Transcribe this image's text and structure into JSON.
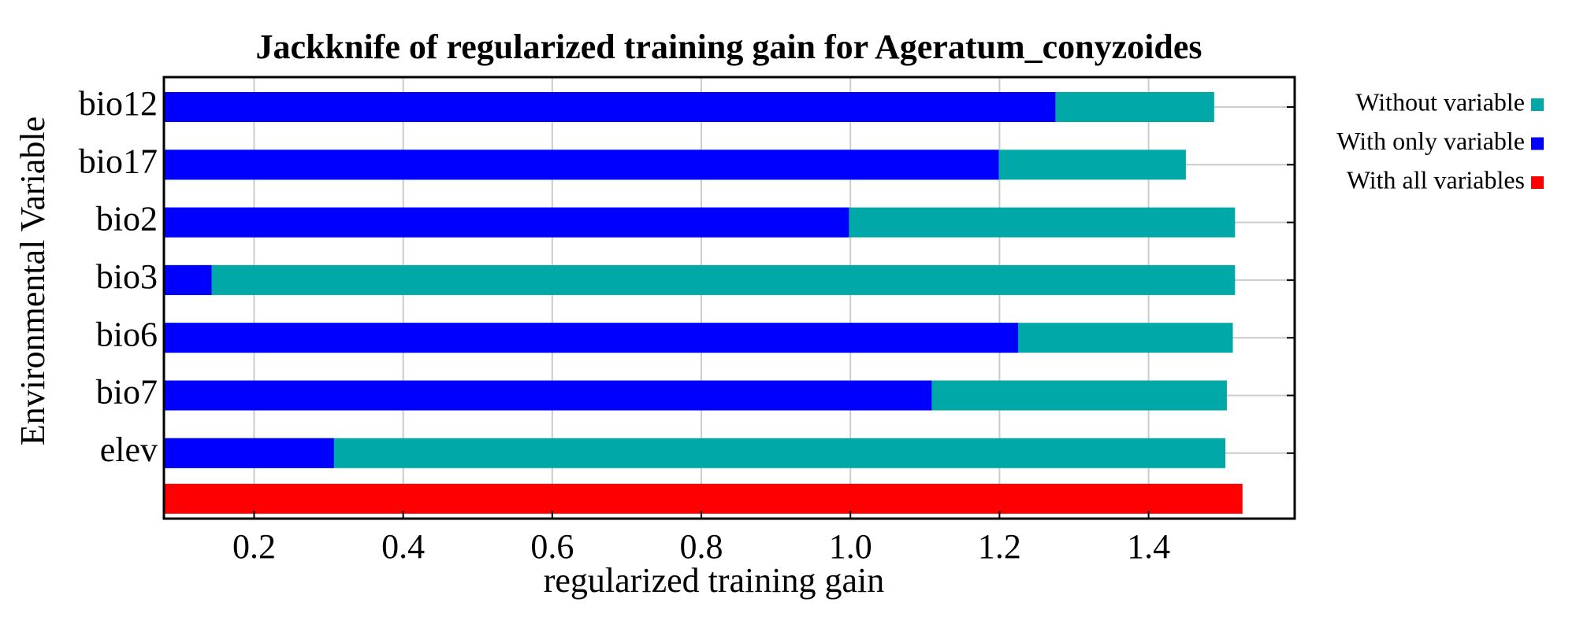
{
  "chart_data": {
    "type": "bar",
    "orientation": "horizontal",
    "title": "Jackknife of regularized training gain for Ageratum_conyzoides",
    "x_label": "regularized training gain",
    "y_label": "Environmental Variable",
    "categories": [
      "bio12",
      "bio17",
      "bio2",
      "bio3",
      "bio6",
      "bio7",
      "elev",
      null
    ],
    "series": [
      {
        "name": "Without variable",
        "color": "#00a8a8",
        "values": [
          1.488,
          1.45,
          1.516,
          1.516,
          1.513,
          1.505,
          1.503,
          null
        ]
      },
      {
        "name": "With only variable",
        "color": "#0000ff",
        "values": [
          1.275,
          1.199,
          0.998,
          0.143,
          1.225,
          1.109,
          0.307,
          null
        ]
      },
      {
        "name": "With all variables",
        "color": "#ff0000",
        "values": [
          null,
          null,
          null,
          null,
          null,
          null,
          null,
          1.526
        ]
      }
    ],
    "xlim": [
      0.079,
      1.596
    ],
    "xticks": [
      0.2,
      0.4,
      0.6,
      0.8,
      {
        "value": 1.0,
        "label": "1.0"
      },
      1.2,
      1.4
    ],
    "grid": true,
    "legend": "right"
  }
}
